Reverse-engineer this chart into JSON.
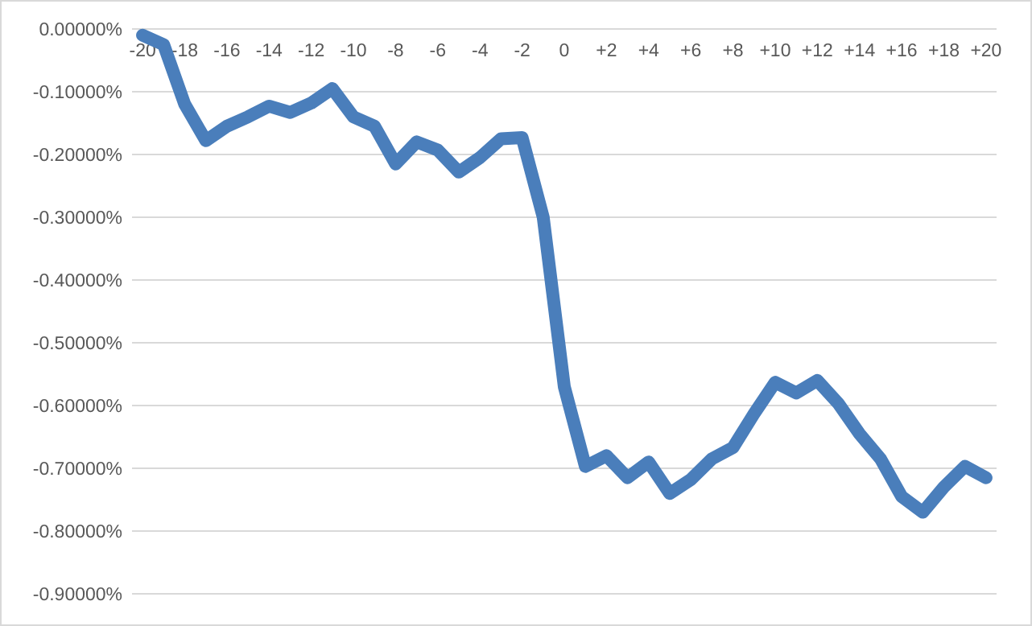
{
  "chart_data": {
    "type": "line",
    "x": [
      -20,
      -19,
      -18,
      -17,
      -16,
      -15,
      -14,
      -13,
      -12,
      -11,
      -10,
      -9,
      -8,
      -7,
      -6,
      -5,
      -4,
      -3,
      -2,
      -1,
      0,
      1,
      2,
      3,
      4,
      5,
      6,
      7,
      8,
      9,
      10,
      11,
      12,
      13,
      14,
      15,
      16,
      17,
      18,
      19,
      20
    ],
    "series": [
      {
        "color": "#4a7ebb",
        "values": [
          -0.01,
          -0.025,
          -0.12,
          -0.178,
          -0.155,
          -0.14,
          -0.123,
          -0.133,
          -0.118,
          -0.095,
          -0.14,
          -0.155,
          -0.215,
          -0.18,
          -0.193,
          -0.228,
          -0.205,
          -0.175,
          -0.173,
          -0.3,
          -0.57,
          -0.697,
          -0.68,
          -0.715,
          -0.69,
          -0.74,
          -0.718,
          -0.685,
          -0.667,
          -0.613,
          -0.563,
          -0.58,
          -0.56,
          -0.597,
          -0.645,
          -0.685,
          -0.745,
          -0.77,
          -0.73,
          -0.697,
          -0.715
        ]
      }
    ],
    "xlim": [
      -20.5,
      20.5
    ],
    "xticks": [
      -20,
      -18,
      -16,
      -14,
      -12,
      -10,
      -8,
      -6,
      -4,
      -2,
      0,
      {
        "value": 2,
        "label": "+2"
      },
      {
        "value": 4,
        "label": "+4"
      },
      {
        "value": 6,
        "label": "+6"
      },
      {
        "value": 8,
        "label": "+8"
      },
      {
        "value": 10,
        "label": "+10"
      },
      {
        "value": 12,
        "label": "+12"
      },
      {
        "value": 14,
        "label": "+14"
      },
      {
        "value": 16,
        "label": "+16"
      },
      {
        "value": 18,
        "label": "+18"
      },
      {
        "value": 20,
        "label": "+20"
      }
    ],
    "ylim": [
      -0.9,
      0
    ],
    "yticks": [
      {
        "value": 0,
        "label": "0.00000%"
      },
      {
        "value": -0.1,
        "label": "-0.10000%"
      },
      {
        "value": -0.2,
        "label": "-0.20000%"
      },
      {
        "value": -0.3,
        "label": "-0.30000%"
      },
      {
        "value": -0.4,
        "label": "-0.40000%"
      },
      {
        "value": -0.5,
        "label": "-0.50000%"
      },
      {
        "value": -0.6,
        "label": "-0.60000%"
      },
      {
        "value": -0.7,
        "label": "-0.70000%"
      },
      {
        "value": -0.8,
        "label": "-0.80000%"
      },
      {
        "value": -0.9,
        "label": "-0.90000%"
      }
    ],
    "grid": "y",
    "marker": "none",
    "line_style": "solid"
  }
}
